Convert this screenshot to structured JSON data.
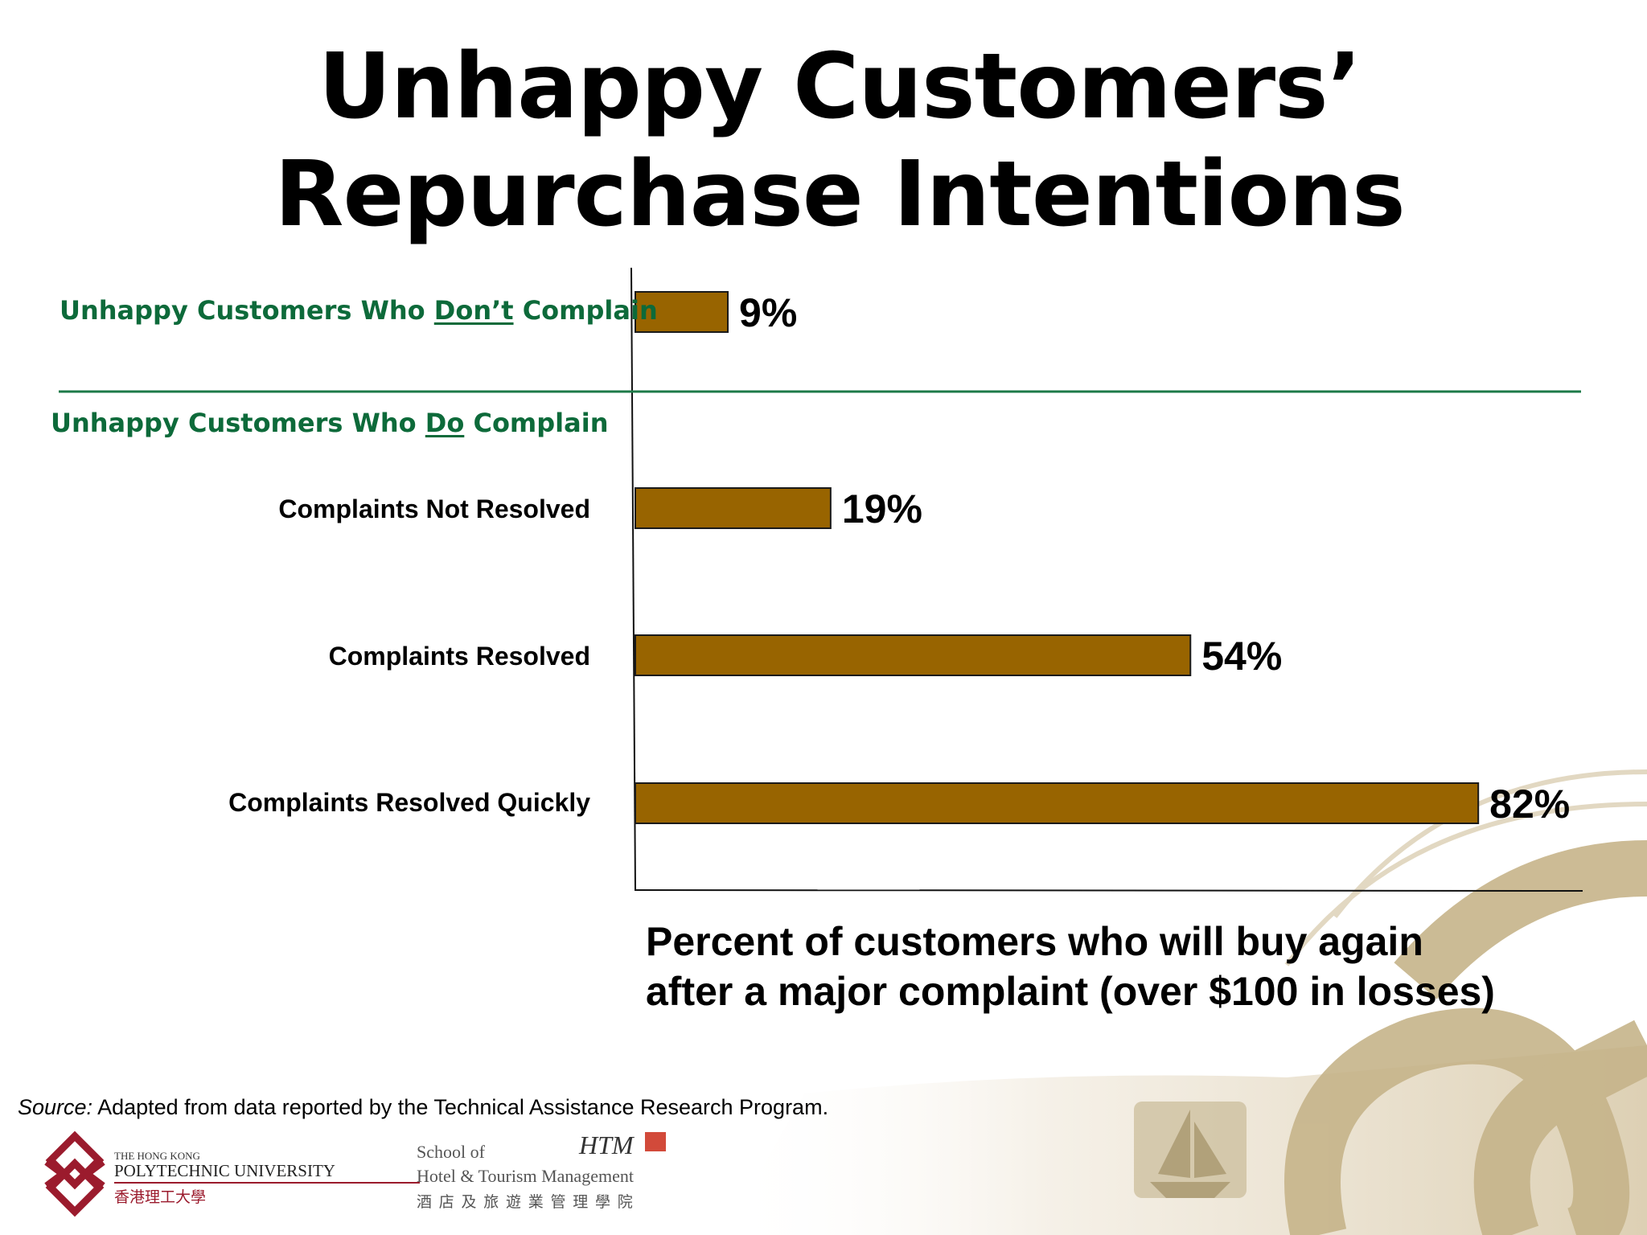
{
  "title_line1": "Unhappy Customers’",
  "title_line2": "Repurchase Intentions",
  "groups": {
    "dont_pre": "Unhappy Customers Who ",
    "dont_underlined": "Don’t",
    "dont_post": " Complain",
    "do_pre": "Unhappy Customers Who ",
    "do_underlined": "Do",
    "do_post": " Complain"
  },
  "chart_data": {
    "type": "bar",
    "orientation": "horizontal",
    "categories": [
      "",
      "Complaints Not Resolved",
      "Complaints Resolved",
      "Complaints Resolved Quickly"
    ],
    "values": [
      9,
      19,
      54,
      82
    ],
    "value_labels": [
      "9%",
      "19%",
      "54%",
      "82%"
    ],
    "xlim": [
      0,
      92
    ],
    "caption": "Percent of customers who will buy again after a major complaint (over $100 in losses)",
    "grid": false,
    "legend": "none"
  },
  "source": {
    "prefix": "Source:",
    "text": " Adapted from data reported by the Technical Assistance Research Program."
  },
  "logos": {
    "polyu_small": "THE HONG KONG",
    "polyu_name": "POLYTECHNIC UNIVERSITY",
    "polyu_chinese": "香港理工大學",
    "htm_school": "School of",
    "htm_name": "Hotel & Tourism Management",
    "htm_chinese": "酒 店 及 旅 遊 業 管 理 學 院",
    "htm_mark": "HTM"
  },
  "colors": {
    "bar_fill": "#986400",
    "bar_stroke": "#1a1a1a",
    "group_label": "#0d6a3a",
    "divider": "#1d7a48",
    "watermark": "#c6b48a",
    "polyu_logo": "#9b1b2d"
  }
}
